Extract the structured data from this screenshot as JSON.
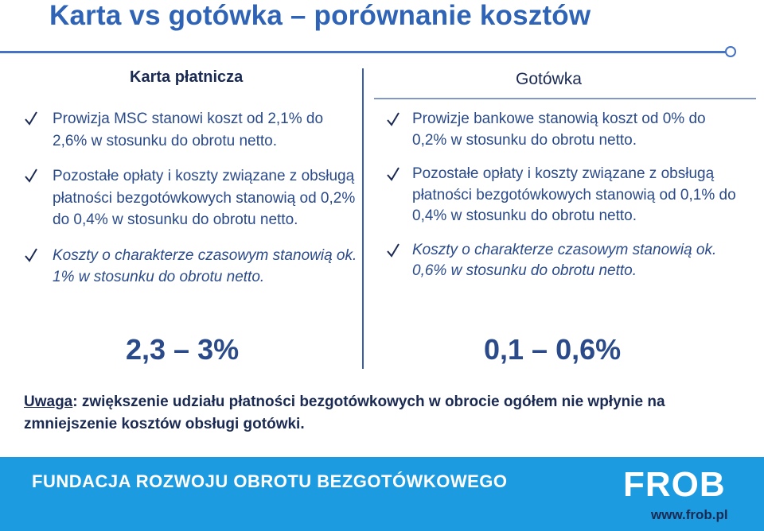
{
  "title": "Karta vs gotówka – porównanie kosztów",
  "left": {
    "heading": "Karta płatnicza",
    "items": [
      "Prowizja MSC stanowi koszt od 2,1% do 2,6% w stosunku do obrotu netto.",
      "Pozostałe opłaty i koszty związane z obsługą płatności bezgotówkowych stanowią od 0,2% do 0,4% w stosunku do obrotu netto.",
      "Koszty o charakterze czasowym stanowią ok. 1% w stosunku do obrotu netto."
    ],
    "range": "2,3 – 3%"
  },
  "right": {
    "heading": "Gotówka",
    "items": [
      "Prowizje bankowe stanowią koszt od 0% do 0,2% w stosunku do obrotu netto.",
      "Pozostałe opłaty i koszty związane z obsługą płatności bezgotówkowych stanowią od 0,1% do 0,4% w stosunku do obrotu netto.",
      "Koszty o charakterze czasowym stanowią ok. 0,6% w stosunku do obrotu netto."
    ],
    "range": "0,1 – 0,6%"
  },
  "note": {
    "label": "Uwaga",
    "text": ": zwiększenie udziału płatności bezgotówkowych w obrocie ogółem nie wpłynie na zmniejszenie kosztów obsługi gotówki."
  },
  "footer": {
    "name": "FUNDACJA ROZWOJU OBROTU BEZGOTÓWKOWEGO",
    "logo": "FROB",
    "url": "www.frob.pl"
  },
  "icons": {
    "bullet": "check-icon"
  },
  "colors": {
    "title": "#2e63b5",
    "footer": "#1c9be0",
    "text": "#2a4a8a"
  }
}
